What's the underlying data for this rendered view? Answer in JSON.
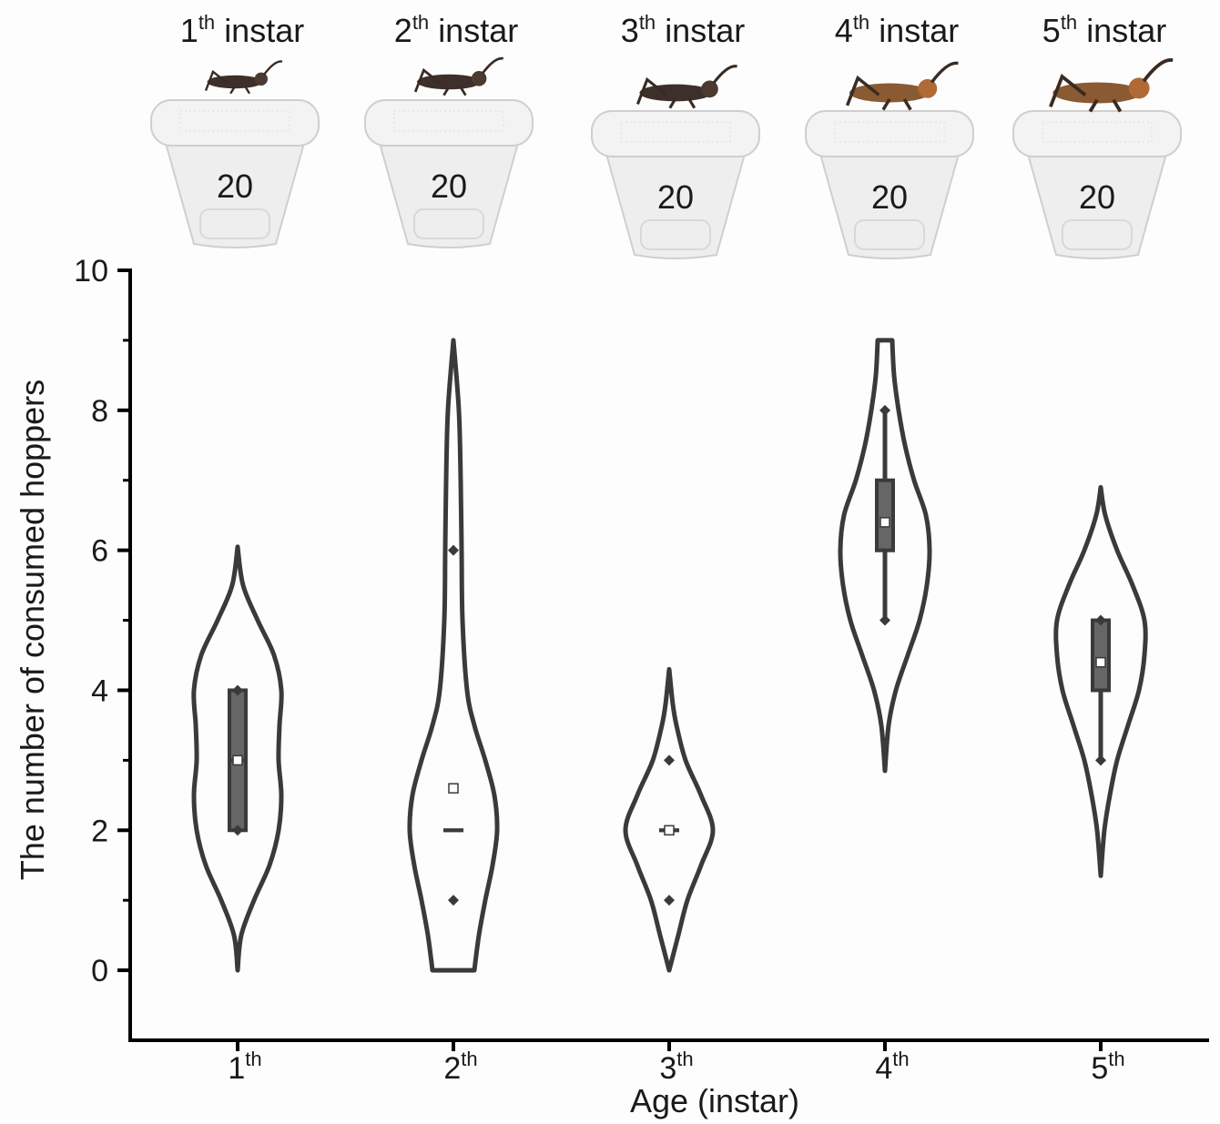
{
  "header": [
    {
      "number": "1",
      "suffix": "th",
      "word": "instar",
      "count": 20
    },
    {
      "number": "2",
      "suffix": "th",
      "word": "instar",
      "count": 20
    },
    {
      "number": "3",
      "suffix": "th",
      "word": "instar",
      "count": 20
    },
    {
      "number": "4",
      "suffix": "th",
      "word": "instar",
      "count": 20
    },
    {
      "number": "5",
      "suffix": "th",
      "word": "instar",
      "count": 20
    }
  ],
  "chart_data": {
    "type": "violin",
    "y_label": "The number of consumed hoppers",
    "x_label": "Age (instar)",
    "categories": [
      {
        "number": "1",
        "suffix": "th"
      },
      {
        "number": "2",
        "suffix": "th"
      },
      {
        "number": "3",
        "suffix": "th"
      },
      {
        "number": "4",
        "suffix": "th"
      },
      {
        "number": "5",
        "suffix": "th"
      }
    ],
    "ylim": [
      -1,
      10
    ],
    "yticks": [
      0,
      2,
      4,
      6,
      8,
      10
    ],
    "yminorticks": [
      1,
      3,
      5,
      7,
      9
    ],
    "line_color": "#3a3a3a",
    "box_color": "#666666",
    "groups": [
      {
        "violin_y": [
          0,
          0.5,
          1,
          1.5,
          2,
          2.5,
          3,
          3.5,
          4,
          4.5,
          5,
          5.5,
          6.05
        ],
        "violin_width": [
          0,
          0.08,
          0.36,
          0.7,
          0.9,
          0.96,
          0.9,
          0.92,
          0.96,
          0.8,
          0.44,
          0.12,
          0
        ],
        "whisker": [
          2,
          4
        ],
        "box": [
          2,
          4
        ],
        "median": 3,
        "mean": 3,
        "points": [
          2,
          4
        ]
      },
      {
        "violin_y": [
          0,
          0.5,
          1,
          1.5,
          2,
          2.5,
          3,
          3.5,
          4,
          5,
          6,
          7,
          8,
          9
        ],
        "violin_width": [
          0.46,
          0.56,
          0.7,
          0.86,
          0.96,
          0.9,
          0.7,
          0.46,
          0.3,
          0.2,
          0.18,
          0.16,
          0.12,
          0
        ],
        "whisker": [
          2,
          2
        ],
        "box": [
          2,
          2
        ],
        "median": 2,
        "mean": 2.6,
        "points": [
          1,
          6
        ]
      },
      {
        "violin_y": [
          0,
          0.5,
          1,
          1.5,
          2,
          2.5,
          3,
          3.5,
          3.8,
          4.3
        ],
        "violin_width": [
          0,
          0.2,
          0.4,
          0.7,
          0.96,
          0.7,
          0.36,
          0.16,
          0.08,
          0
        ],
        "whisker": [
          2,
          2
        ],
        "box": [
          2,
          2
        ],
        "median": 2,
        "mean": 2,
        "points": [
          1,
          3
        ]
      },
      {
        "violin_y": [
          2.85,
          3.5,
          4,
          4.5,
          5,
          5.5,
          6,
          6.5,
          7,
          7.5,
          8,
          8.5,
          9
        ],
        "violin_width": [
          0,
          0.08,
          0.24,
          0.5,
          0.76,
          0.92,
          0.98,
          0.9,
          0.64,
          0.44,
          0.3,
          0.2,
          0.16
        ],
        "whisker": [
          5,
          8
        ],
        "box": [
          6,
          7
        ],
        "median": 6,
        "mean": 6.4,
        "points": [
          5,
          8
        ]
      },
      {
        "violin_y": [
          1.35,
          2,
          2.5,
          3,
          3.5,
          4,
          4.5,
          5,
          5.5,
          6,
          6.5,
          6.9
        ],
        "violin_width": [
          0,
          0.08,
          0.2,
          0.36,
          0.6,
          0.84,
          0.96,
          0.96,
          0.7,
          0.36,
          0.1,
          0
        ],
        "whisker": [
          3,
          5
        ],
        "box": [
          4,
          5
        ],
        "median": 4,
        "mean": 4.4,
        "points": [
          3,
          5
        ]
      }
    ]
  }
}
